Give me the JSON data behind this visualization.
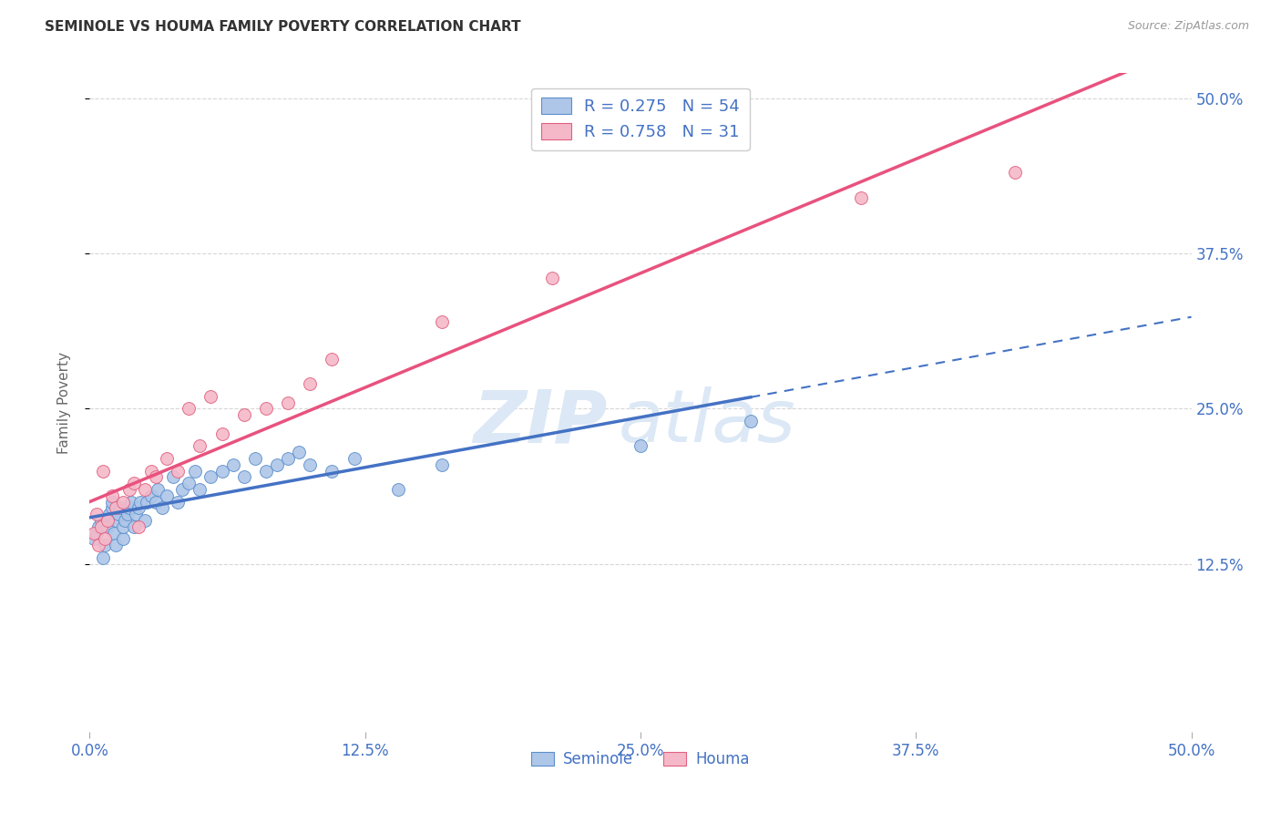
{
  "title": "SEMINOLE VS HOUMA FAMILY POVERTY CORRELATION CHART",
  "source": "Source: ZipAtlas.com",
  "ylabel": "Family Poverty",
  "xlim": [
    0.0,
    0.5
  ],
  "ylim": [
    -0.01,
    0.52
  ],
  "xtick_labels": [
    "0.0%",
    "",
    "",
    "",
    "",
    "12.5%",
    "",
    "",
    "",
    "",
    "25.0%",
    "",
    "",
    "",
    "",
    "37.5%",
    "",
    "",
    "",
    "",
    "50.0%"
  ],
  "xtick_vals": [
    0.0,
    0.025,
    0.05,
    0.075,
    0.1,
    0.125,
    0.15,
    0.175,
    0.2,
    0.225,
    0.25,
    0.275,
    0.3,
    0.325,
    0.35,
    0.375,
    0.4,
    0.425,
    0.45,
    0.475,
    0.5
  ],
  "xtick_major_labels": [
    "0.0%",
    "12.5%",
    "25.0%",
    "37.5%",
    "50.0%"
  ],
  "xtick_major_vals": [
    0.0,
    0.125,
    0.25,
    0.375,
    0.5
  ],
  "ytick_labels_right": [
    "50.0%",
    "37.5%",
    "25.0%",
    "12.5%"
  ],
  "ytick_vals_right": [
    0.5,
    0.375,
    0.25,
    0.125
  ],
  "grid_color": "#cccccc",
  "background_color": "#ffffff",
  "seminole_color": "#aec6e8",
  "houma_color": "#f5b8c8",
  "seminole_edge_color": "#5b8fcc",
  "houma_edge_color": "#e06080",
  "seminole_line_color": "#4472c4",
  "houma_line_color": "#e8527e",
  "seminole_R": 0.275,
  "seminole_N": 54,
  "houma_R": 0.758,
  "houma_N": 31,
  "legend_label_color": "#4472c4",
  "seminole_scatter_x": [
    0.002,
    0.003,
    0.004,
    0.005,
    0.006,
    0.007,
    0.008,
    0.009,
    0.01,
    0.01,
    0.011,
    0.012,
    0.012,
    0.013,
    0.014,
    0.015,
    0.015,
    0.016,
    0.017,
    0.018,
    0.019,
    0.02,
    0.021,
    0.022,
    0.023,
    0.025,
    0.026,
    0.028,
    0.03,
    0.031,
    0.033,
    0.035,
    0.038,
    0.04,
    0.042,
    0.045,
    0.048,
    0.05,
    0.055,
    0.06,
    0.065,
    0.07,
    0.075,
    0.08,
    0.085,
    0.09,
    0.095,
    0.1,
    0.11,
    0.12,
    0.14,
    0.16,
    0.25,
    0.3
  ],
  "seminole_scatter_y": [
    0.145,
    0.15,
    0.155,
    0.16,
    0.13,
    0.14,
    0.155,
    0.165,
    0.17,
    0.175,
    0.15,
    0.14,
    0.16,
    0.165,
    0.17,
    0.145,
    0.155,
    0.16,
    0.165,
    0.17,
    0.175,
    0.155,
    0.165,
    0.17,
    0.175,
    0.16,
    0.175,
    0.18,
    0.175,
    0.185,
    0.17,
    0.18,
    0.195,
    0.175,
    0.185,
    0.19,
    0.2,
    0.185,
    0.195,
    0.2,
    0.205,
    0.195,
    0.21,
    0.2,
    0.205,
    0.21,
    0.215,
    0.205,
    0.2,
    0.21,
    0.185,
    0.205,
    0.22,
    0.24
  ],
  "houma_scatter_x": [
    0.002,
    0.003,
    0.004,
    0.005,
    0.006,
    0.007,
    0.008,
    0.01,
    0.012,
    0.015,
    0.018,
    0.02,
    0.022,
    0.025,
    0.028,
    0.03,
    0.035,
    0.04,
    0.045,
    0.05,
    0.055,
    0.06,
    0.07,
    0.08,
    0.09,
    0.1,
    0.11,
    0.16,
    0.21,
    0.35,
    0.42
  ],
  "houma_scatter_y": [
    0.15,
    0.165,
    0.14,
    0.155,
    0.2,
    0.145,
    0.16,
    0.18,
    0.17,
    0.175,
    0.185,
    0.19,
    0.155,
    0.185,
    0.2,
    0.195,
    0.21,
    0.2,
    0.25,
    0.22,
    0.26,
    0.23,
    0.245,
    0.25,
    0.255,
    0.27,
    0.29,
    0.32,
    0.355,
    0.42,
    0.44
  ],
  "watermark_line1": "ZIP",
  "watermark_line2": "atlas",
  "watermark_color": "#dce8f5"
}
